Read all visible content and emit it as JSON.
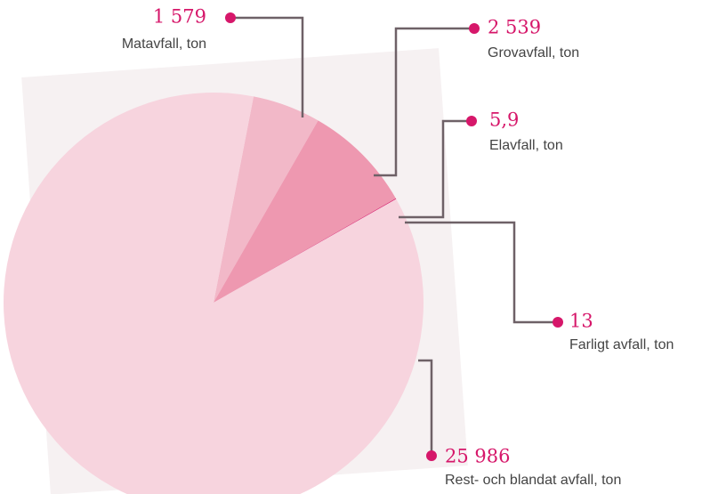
{
  "chart_data": {
    "type": "pie",
    "categories": [
      "Matavfall, ton",
      "Grovavfall, ton",
      "Elavfall, ton",
      "Farligt avfall, ton",
      "Rest- och blandat avfall, ton"
    ],
    "values": [
      1579,
      2539,
      5.9,
      13,
      25986
    ],
    "value_labels": [
      "1 579",
      "2 539",
      "5,9",
      "13",
      "25 986"
    ],
    "colors": [
      "#f2b8c8",
      "#ee98b0",
      "#e0507f",
      "#d6176a",
      "#f7d4de"
    ]
  }
}
